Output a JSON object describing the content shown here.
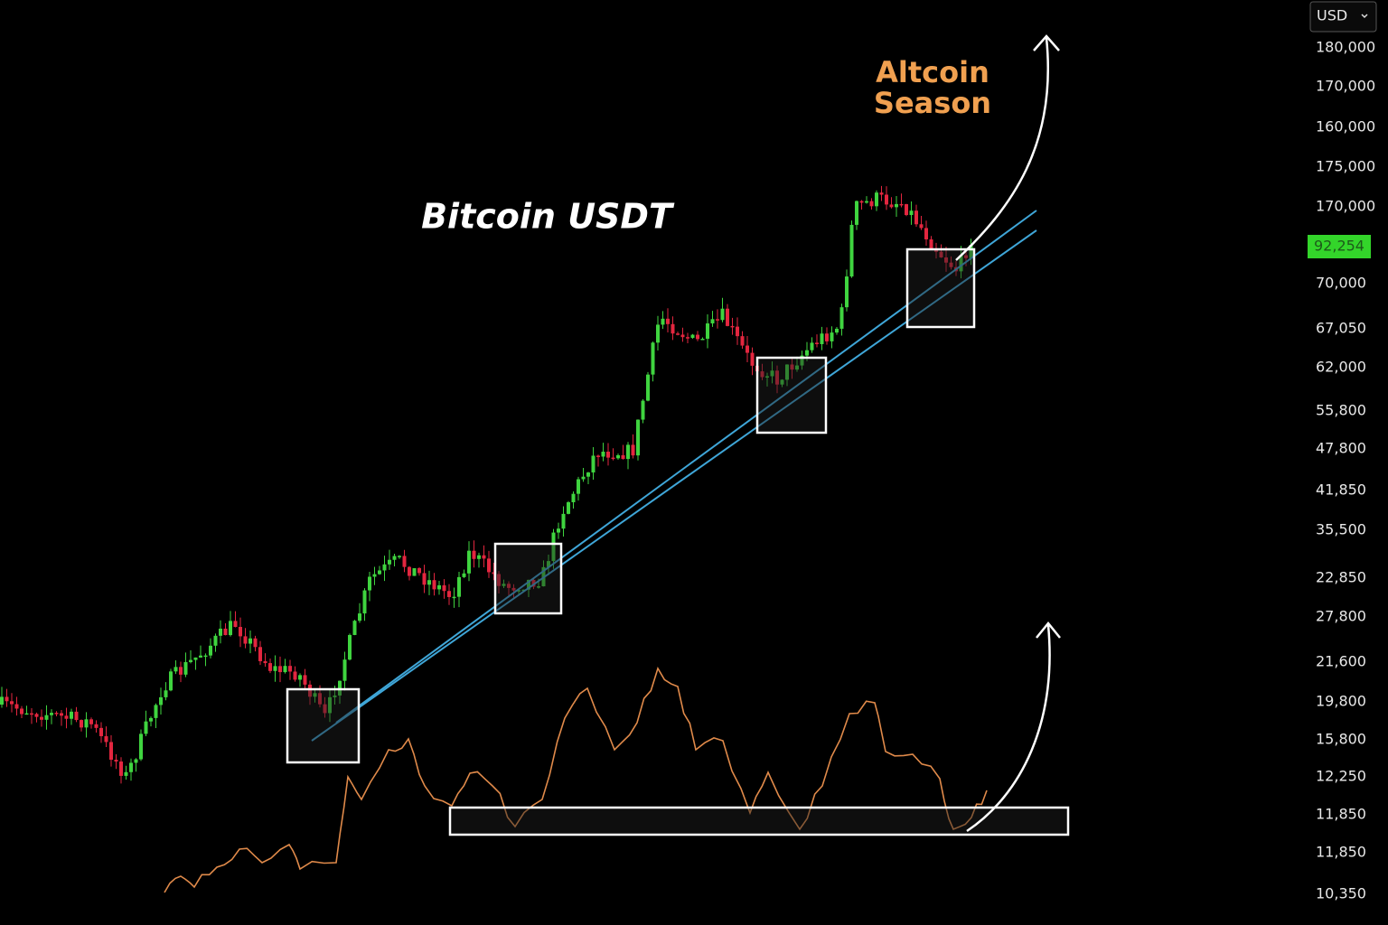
{
  "currency": "USD",
  "title": "Bitcoin USDT",
  "annotation": [
    "Altcoin",
    "Season"
  ],
  "current_price": "92,254",
  "price_labels": [
    "180,000",
    "170,000",
    "160,000",
    "175,000",
    "170,000",
    "70,000",
    "67,050",
    "62,000",
    "55,800",
    "47,800",
    "41,850",
    "35,500",
    "22,850",
    "27,800",
    "21,600",
    "19,800",
    "15,800",
    "12,250",
    "11,850",
    "11,850",
    "10,350"
  ]
}
